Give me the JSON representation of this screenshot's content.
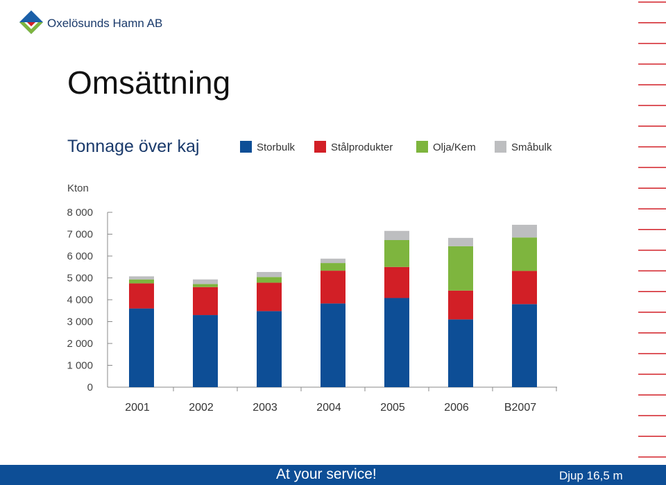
{
  "header": {
    "company": "Oxelösunds Hamn AB",
    "title": "Omsättning",
    "subtitle": "Tonnage över kaj"
  },
  "colors": {
    "brand_blue": "#0d4e96",
    "accent_red": "#d21f26",
    "accent_green": "#7eb53e",
    "accent_gray": "#bdbec0"
  },
  "legend": [
    {
      "label": "Storbulk",
      "color": "#0d4e96"
    },
    {
      "label": "Stålprodukter",
      "color": "#d21f26"
    },
    {
      "label": "Olja/Kem",
      "color": "#7eb53e"
    },
    {
      "label": "Småbulk",
      "color": "#bdbec0"
    }
  ],
  "chart_data": {
    "type": "bar",
    "stacked": true,
    "ylabel": "Kton",
    "ylim": [
      0,
      8000
    ],
    "yticks": [
      0,
      1000,
      2000,
      3000,
      4000,
      5000,
      6000,
      7000,
      8000
    ],
    "ytick_labels": [
      "0",
      "1 000",
      "2 000",
      "3 000",
      "4 000",
      "5 000",
      "6 000",
      "7 000",
      "8 000"
    ],
    "categories": [
      "2001",
      "2002",
      "2003",
      "2004",
      "2005",
      "2006",
      "B2007"
    ],
    "series": [
      {
        "name": "Storbulk",
        "color": "#0d4e96",
        "values": [
          3600,
          3300,
          3480,
          3830,
          4080,
          3100,
          3800
        ]
      },
      {
        "name": "Stålprodukter",
        "color": "#d21f26",
        "values": [
          1150,
          1280,
          1300,
          1500,
          1420,
          1320,
          1520
        ]
      },
      {
        "name": "Olja/Kem",
        "color": "#7eb53e",
        "values": [
          180,
          140,
          260,
          350,
          1230,
          2030,
          1530
        ]
      },
      {
        "name": "Småbulk",
        "color": "#bdbec0",
        "values": [
          140,
          210,
          230,
          200,
          420,
          380,
          580
        ]
      }
    ],
    "grid": false,
    "legend_position": "top"
  },
  "footer": {
    "slogan": "At your service!",
    "depth": "Djup 16,5 m"
  }
}
